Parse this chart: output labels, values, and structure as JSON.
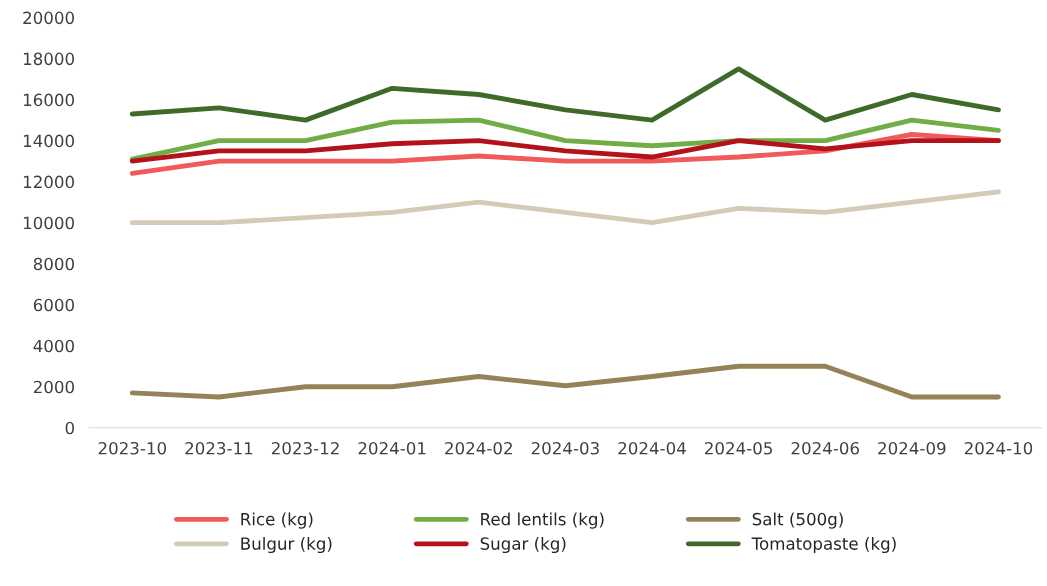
{
  "chart_data": {
    "type": "line",
    "categories": [
      "2023-10",
      "2023-11",
      "2023-12",
      "2024-01",
      "2024-02",
      "2024-03",
      "2024-04",
      "2024-05",
      "2024-06",
      "2024-09",
      "2024-10"
    ],
    "ylim": [
      0,
      20000
    ],
    "yticks": [
      0,
      2000,
      4000,
      6000,
      8000,
      10000,
      12000,
      14000,
      16000,
      18000,
      20000
    ],
    "grid": false,
    "legend": "bottom",
    "line_style": "solid",
    "series": [
      {
        "name": "Rice (kg)",
        "color": "#f05a5a",
        "values": [
          12400,
          13000,
          13000,
          13000,
          13250,
          13000,
          13000,
          13200,
          13500,
          14300,
          14000
        ]
      },
      {
        "name": "Bulgur (kg)",
        "color": "#d3cbb8",
        "values": [
          10000,
          10000,
          10250,
          10500,
          11000,
          10500,
          10000,
          10700,
          10500,
          11000,
          11500
        ]
      },
      {
        "name": "Red lentils (kg)",
        "color": "#70ad47",
        "values": [
          13100,
          14000,
          14000,
          14900,
          15000,
          14000,
          13750,
          14000,
          14000,
          15000,
          14500
        ]
      },
      {
        "name": "Sugar (kg)",
        "color": "#b4121b",
        "values": [
          13000,
          13500,
          13500,
          13850,
          14000,
          13500,
          13200,
          14000,
          13600,
          14000,
          14000
        ]
      },
      {
        "name": "Salt (500g)",
        "color": "#948259",
        "values": [
          1700,
          1500,
          2000,
          2000,
          2500,
          2050,
          2500,
          3000,
          3000,
          1500,
          1500
        ]
      },
      {
        "name": "Tomatopaste (kg)",
        "color": "#3f6b2a",
        "values": [
          15300,
          15600,
          15000,
          16550,
          16250,
          15500,
          15000,
          17500,
          15000,
          16250,
          15500
        ]
      }
    ]
  }
}
